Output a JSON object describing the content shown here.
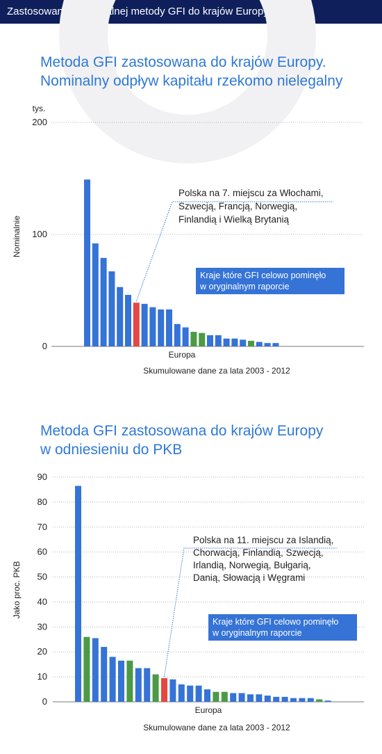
{
  "header": {
    "title": "Zastosowanie absurdalnej metody GFI do krajów Europy"
  },
  "colors": {
    "header_bg": "#0e1f5b",
    "title": "#2f79d6",
    "blue": "#3573d6",
    "green": "#4c9a45",
    "red": "#e34842",
    "legend_bg": "#3573d6",
    "grid": "#b5b5b5"
  },
  "chart_data": [
    {
      "type": "bar",
      "title_lines": [
        "Metoda GFI zastosowana do krajów Europy.",
        "Nominalny odpływ kapitału rzekomo nielegalny"
      ],
      "unit_label": "tys.",
      "ylabel": "Nominalnie",
      "xlabel": "Europa",
      "caption": "Skumulowane dane za lata 2003 - 2012",
      "ylim": [
        0,
        200
      ],
      "yticks": [
        0,
        100,
        200
      ],
      "grid": true,
      "values": [
        149,
        92,
        79,
        67,
        53,
        46,
        39,
        38,
        35,
        33,
        33,
        20,
        17,
        13,
        12,
        10,
        10,
        7,
        7,
        6,
        5,
        4,
        3,
        3
      ],
      "colors": [
        "blue",
        "blue",
        "blue",
        "blue",
        "blue",
        "blue",
        "red",
        "blue",
        "blue",
        "blue",
        "blue",
        "blue",
        "blue",
        "green",
        "green",
        "blue",
        "blue",
        "blue",
        "blue",
        "blue",
        "green",
        "blue",
        "blue",
        "blue"
      ],
      "annotation": [
        "Polska na 7. miejscu za Włochami,",
        "Szwecją, Francją, Norwegią,",
        "Finlandią i Wielką Brytanią"
      ],
      "legend": [
        "Kraje które GFI celowo pominęło",
        "w oryginalnym raporcie"
      ]
    },
    {
      "type": "bar",
      "title_lines": [
        "Metoda GFI zastosowana do krajów Europy",
        "w odniesieniu do PKB"
      ],
      "unit_label": "",
      "ylabel": "Jako proc. PKB",
      "xlabel": "Europa",
      "caption": "Skumulowane dane za lata 2003 - 2012",
      "ylim": [
        0,
        90
      ],
      "yticks": [
        0,
        10,
        20,
        30,
        40,
        50,
        60,
        70,
        80,
        90
      ],
      "grid": true,
      "values": [
        86.5,
        26,
        25.5,
        22,
        18,
        16.5,
        16.5,
        13.5,
        13.5,
        11,
        9.5,
        9,
        7,
        6.5,
        6.5,
        5,
        4,
        4,
        3.5,
        3.5,
        3,
        3,
        2.5,
        2,
        2,
        1.5,
        1.5,
        1.5,
        1,
        0.5
      ],
      "colors": [
        "blue",
        "green",
        "blue",
        "blue",
        "blue",
        "blue",
        "green",
        "blue",
        "blue",
        "green",
        "red",
        "blue",
        "blue",
        "blue",
        "blue",
        "blue",
        "green",
        "green",
        "blue",
        "blue",
        "blue",
        "blue",
        "blue",
        "blue",
        "blue",
        "blue",
        "blue",
        "blue",
        "green",
        "blue"
      ],
      "annotation": [
        "Polska na 11. miejscu za Islandią,",
        "Chorwacją, Finlandią, Szwecją,",
        "Irlandią, Norwegią, Bułgarią,",
        "Danią, Słowacją i Węgrami"
      ],
      "legend": [
        "Kraje które GFI celowo pominęło",
        "w oryginalnym raporcie"
      ]
    }
  ]
}
